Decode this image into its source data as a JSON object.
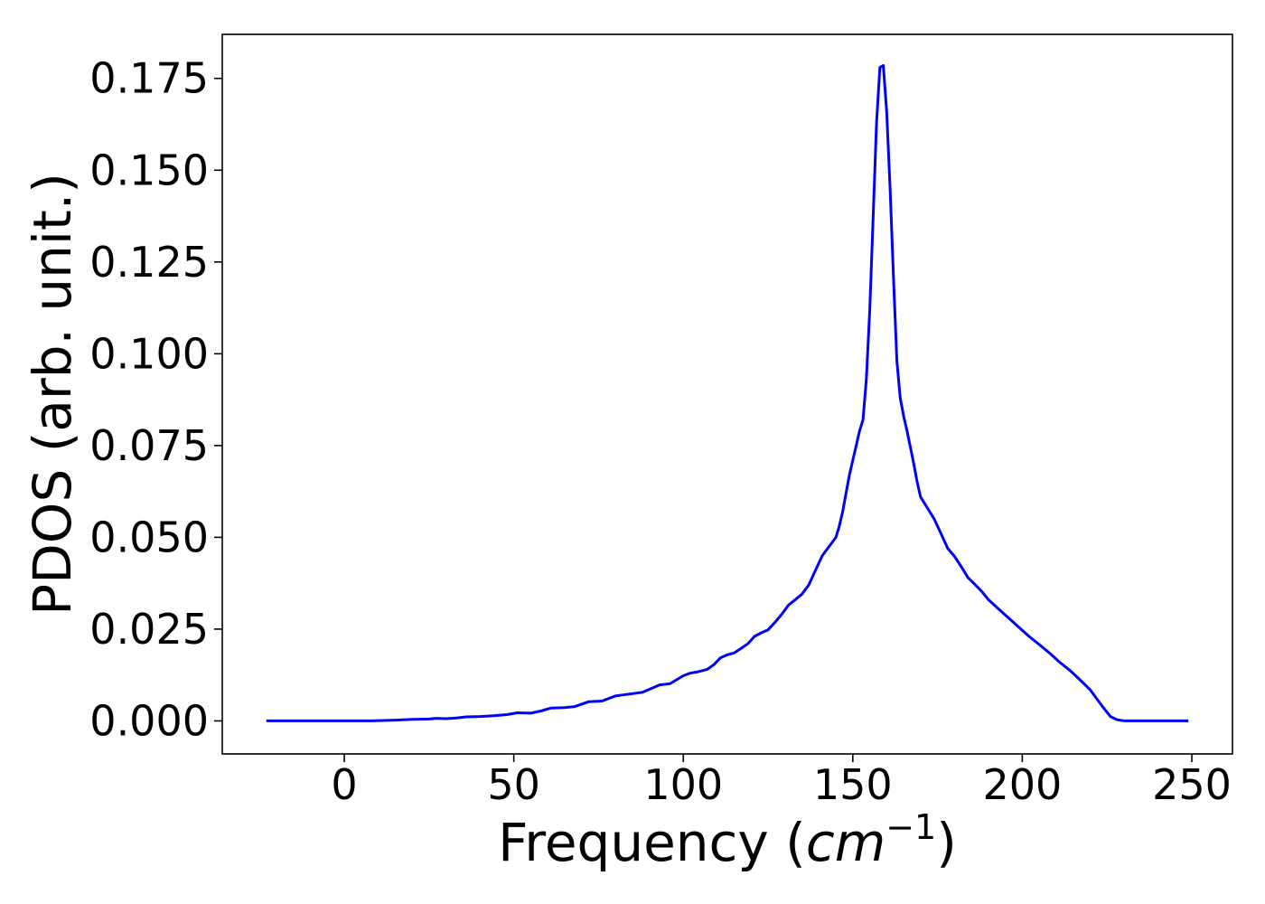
{
  "chart_data": {
    "type": "line",
    "title": "",
    "xlabel": "Frequency (",
    "xlabel_math": "cm",
    "xlabel_sup": "−1",
    "xlabel_end": ")",
    "ylabel": "PDOS (arb. unit.)",
    "xlim": [
      -36,
      262
    ],
    "ylim": [
      -0.009,
      0.187
    ],
    "x_ticks": [
      0,
      50,
      100,
      150,
      200,
      250
    ],
    "y_ticks": [
      0.0,
      0.025,
      0.05,
      0.075,
      0.1,
      0.125,
      0.15,
      0.175
    ],
    "x_tick_labels": [
      "0",
      "50",
      "100",
      "150",
      "200",
      "250"
    ],
    "y_tick_labels": [
      "0.000",
      "0.025",
      "0.050",
      "0.075",
      "0.100",
      "0.125",
      "0.150",
      "0.175"
    ],
    "grid": false,
    "series": [
      {
        "color": "#0000ff",
        "points": [
          [
            -23,
            0.0
          ],
          [
            0,
            0.0
          ],
          [
            8,
            0.0
          ],
          [
            15,
            0.0002
          ],
          [
            20,
            0.0004
          ],
          [
            25,
            0.0005
          ],
          [
            27,
            0.0007
          ],
          [
            30,
            0.0006
          ],
          [
            33,
            0.0008
          ],
          [
            36,
            0.0011
          ],
          [
            40,
            0.0012
          ],
          [
            44,
            0.0014
          ],
          [
            48,
            0.0017
          ],
          [
            51,
            0.0022
          ],
          [
            55,
            0.0021
          ],
          [
            58,
            0.0027
          ],
          [
            61,
            0.0035
          ],
          [
            65,
            0.0036
          ],
          [
            68,
            0.0039
          ],
          [
            72,
            0.0052
          ],
          [
            76,
            0.0054
          ],
          [
            80,
            0.0068
          ],
          [
            84,
            0.0073
          ],
          [
            88,
            0.0078
          ],
          [
            90,
            0.0086
          ],
          [
            93,
            0.0098
          ],
          [
            96,
            0.0101
          ],
          [
            98,
            0.0112
          ],
          [
            100,
            0.0123
          ],
          [
            102,
            0.013
          ],
          [
            104,
            0.0133
          ],
          [
            107,
            0.014
          ],
          [
            109,
            0.0153
          ],
          [
            111,
            0.0172
          ],
          [
            113,
            0.018
          ],
          [
            115,
            0.0185
          ],
          [
            117,
            0.0197
          ],
          [
            119,
            0.021
          ],
          [
            121,
            0.023
          ],
          [
            123,
            0.024
          ],
          [
            125,
            0.0248
          ],
          [
            127,
            0.0268
          ],
          [
            129,
            0.029
          ],
          [
            131,
            0.0315
          ],
          [
            133,
            0.033
          ],
          [
            135,
            0.0345
          ],
          [
            137,
            0.037
          ],
          [
            139,
            0.041
          ],
          [
            141,
            0.045
          ],
          [
            143,
            0.0475
          ],
          [
            145,
            0.05
          ],
          [
            146,
            0.053
          ],
          [
            147,
            0.057
          ],
          [
            148,
            0.062
          ],
          [
            149,
            0.067
          ],
          [
            150,
            0.071
          ],
          [
            151,
            0.075
          ],
          [
            152,
            0.079
          ],
          [
            153,
            0.082
          ],
          [
            154,
            0.093
          ],
          [
            155,
            0.112
          ],
          [
            156,
            0.137
          ],
          [
            157,
            0.163
          ],
          [
            158,
            0.178
          ],
          [
            159,
            0.1785
          ],
          [
            160,
            0.166
          ],
          [
            161,
            0.145
          ],
          [
            162,
            0.121
          ],
          [
            163,
            0.098
          ],
          [
            164,
            0.088
          ],
          [
            165,
            0.083
          ],
          [
            166,
            0.079
          ],
          [
            167,
            0.0745
          ],
          [
            168,
            0.07
          ],
          [
            169,
            0.065
          ],
          [
            170,
            0.061
          ],
          [
            172,
            0.058
          ],
          [
            174,
            0.055
          ],
          [
            176,
            0.051
          ],
          [
            178,
            0.047
          ],
          [
            180,
            0.0448
          ],
          [
            182,
            0.042
          ],
          [
            184,
            0.039
          ],
          [
            186,
            0.0372
          ],
          [
            188,
            0.0353
          ],
          [
            190,
            0.033
          ],
          [
            193,
            0.0305
          ],
          [
            196,
            0.028
          ],
          [
            199,
            0.0255
          ],
          [
            202,
            0.023
          ],
          [
            205,
            0.0208
          ],
          [
            208,
            0.0185
          ],
          [
            211,
            0.016
          ],
          [
            214,
            0.0138
          ],
          [
            217,
            0.0112
          ],
          [
            220,
            0.0085
          ],
          [
            222,
            0.006
          ],
          [
            224,
            0.0035
          ],
          [
            226,
            0.0012
          ],
          [
            228,
            0.0003
          ],
          [
            230,
            0.0
          ],
          [
            240,
            0.0
          ],
          [
            249,
            0.0
          ]
        ]
      }
    ]
  }
}
